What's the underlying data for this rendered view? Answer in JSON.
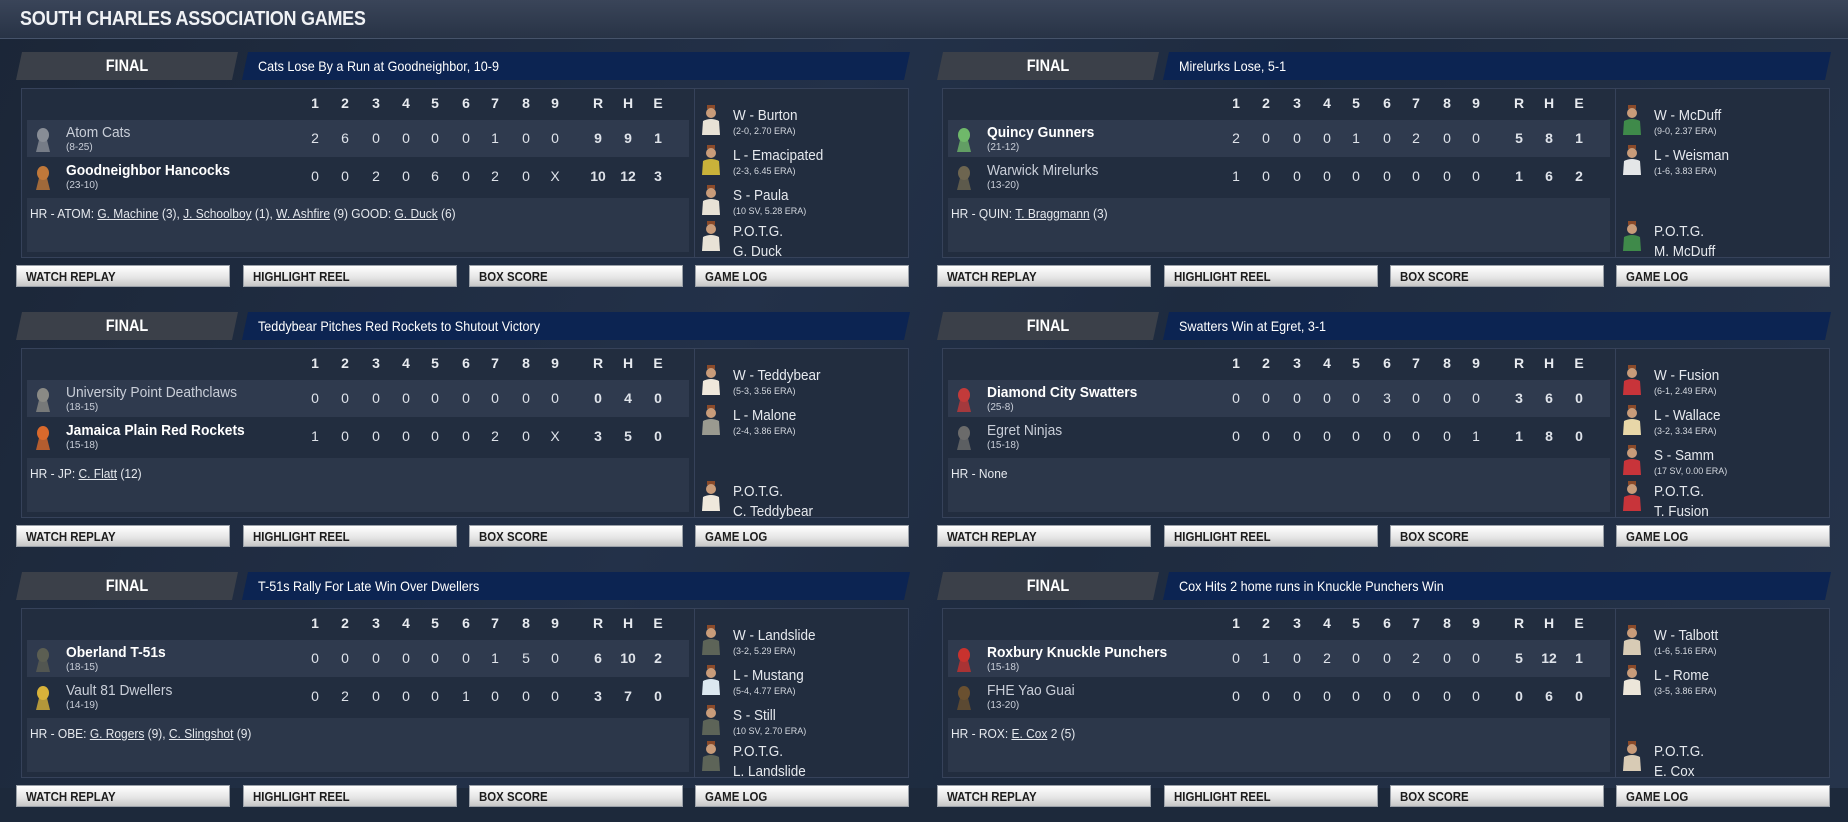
{
  "page_title": "SOUTH CHARLES ASSOCIATION GAMES",
  "innings": [
    "1",
    "2",
    "3",
    "4",
    "5",
    "6",
    "7",
    "8",
    "9"
  ],
  "totals_headers": [
    "R",
    "H",
    "E"
  ],
  "buttons": [
    "WATCH REPLAY",
    "HIGHLIGHT REEL",
    "BOX SCORE",
    "GAME LOG"
  ],
  "colors": {
    "headline_band": "#0c2452",
    "final_band": "#3b4049",
    "background": "#1d293b"
  },
  "games": [
    {
      "status": "FINAL",
      "headline": "Cats Lose By a Run at Goodneighbor, 10-9",
      "teams": [
        {
          "name": "Atom Cats",
          "record": "(8-25)",
          "winner": false,
          "logo": "cat-logo",
          "logo_color": "#888d96",
          "innings": [
            "2",
            "6",
            "0",
            "0",
            "0",
            "0",
            "1",
            "0",
            "0"
          ],
          "totals": [
            "9",
            "9",
            "1"
          ]
        },
        {
          "name": "Goodneighbor Hancocks",
          "record": "(23-10)",
          "winner": true,
          "logo": "hancock-logo",
          "logo_color": "#c0783a",
          "innings": [
            "0",
            "0",
            "2",
            "0",
            "6",
            "0",
            "2",
            "0",
            "X"
          ],
          "totals": [
            "10",
            "12",
            "3"
          ]
        }
      ],
      "hr": [
        {
          "t": "HR - ATOM: "
        },
        {
          "l": "G. Machine"
        },
        {
          "t": " (3), "
        },
        {
          "l": "J. Schoolboy"
        },
        {
          "t": " (1), "
        },
        {
          "l": "W. Ashfire"
        },
        {
          "t": " (9)  GOOD: "
        },
        {
          "l": "G. Duck"
        },
        {
          "t": " (6)"
        }
      ],
      "pitchers": [
        {
          "label": "W - Burton",
          "line": "(2-0, 2.70 ERA)",
          "jersey": "#e8e2d6"
        },
        {
          "label": "L - Emacipated",
          "line": "(2-3, 6.45 ERA)",
          "jersey": "#c9b23a"
        },
        {
          "label": "S - Paula",
          "line": "(10 SV, 5.28 ERA)",
          "jersey": "#e8e2d6"
        },
        {
          "label": "P.O.T.G.",
          "name": "G. Duck",
          "jersey": "#e8e2d6"
        }
      ]
    },
    {
      "status": "FINAL",
      "headline": "Mirelurks Lose, 5-1",
      "teams": [
        {
          "name": "Quincy Gunners",
          "record": "(21-12)",
          "winner": true,
          "logo": "skull-logo",
          "logo_color": "#6fb86a",
          "innings": [
            "2",
            "0",
            "0",
            "0",
            "1",
            "0",
            "2",
            "0",
            "0"
          ],
          "totals": [
            "5",
            "8",
            "1"
          ]
        },
        {
          "name": "Warwick Mirelurks",
          "record": "(13-20)",
          "winner": false,
          "logo": "mirelurk-logo",
          "logo_color": "#6d6550",
          "innings": [
            "1",
            "0",
            "0",
            "0",
            "0",
            "0",
            "0",
            "0",
            "0"
          ],
          "totals": [
            "1",
            "6",
            "2"
          ]
        }
      ],
      "hr": [
        {
          "t": "HR - QUIN: "
        },
        {
          "l": "T. Braggmann"
        },
        {
          "t": " (3)"
        }
      ],
      "pitchers": [
        {
          "label": "W - McDuff",
          "line": "(9-0, 2.37 ERA)",
          "jersey": "#3f8a4a"
        },
        {
          "label": "L - Weisman",
          "line": "(1-6, 3.83 ERA)",
          "jersey": "#e4e6e8"
        },
        null,
        {
          "label": "P.O.T.G.",
          "name": "M. McDuff",
          "jersey": "#3f8a4a"
        }
      ]
    },
    {
      "status": "FINAL",
      "headline": "Teddybear Pitches Red Rockets to Shutout Victory",
      "teams": [
        {
          "name": "University Point Deathclaws",
          "record": "(18-15)",
          "winner": false,
          "logo": "deathclaw-logo",
          "logo_color": "#8a8a85",
          "innings": [
            "0",
            "0",
            "0",
            "0",
            "0",
            "0",
            "0",
            "0",
            "0"
          ],
          "totals": [
            "0",
            "4",
            "0"
          ]
        },
        {
          "name": "Jamaica Plain Red Rockets",
          "record": "(15-18)",
          "winner": true,
          "logo": "rocket-logo",
          "logo_color": "#d9692c",
          "innings": [
            "1",
            "0",
            "0",
            "0",
            "0",
            "0",
            "2",
            "0",
            "X"
          ],
          "totals": [
            "3",
            "5",
            "0"
          ]
        }
      ],
      "hr": [
        {
          "t": "HR - JP: "
        },
        {
          "l": "C. Flatt"
        },
        {
          "t": " (12)"
        }
      ],
      "pitchers": [
        {
          "label": "W - Teddybear",
          "line": "(5-3, 3.56 ERA)",
          "jersey": "#efe8dc"
        },
        {
          "label": "L - Malone",
          "line": "(2-4, 3.86 ERA)",
          "jersey": "#9a9a90"
        },
        null,
        {
          "label": "P.O.T.G.",
          "name": "C. Teddybear",
          "jersey": "#efe8dc"
        }
      ]
    },
    {
      "status": "FINAL",
      "headline": "Swatters Win at Egret, 3-1",
      "teams": [
        {
          "name": "Diamond City Swatters",
          "record": "(25-8)",
          "winner": true,
          "logo": "swatter-logo",
          "logo_color": "#c23a3a",
          "innings": [
            "0",
            "0",
            "0",
            "0",
            "0",
            "3",
            "0",
            "0",
            "0"
          ],
          "totals": [
            "3",
            "6",
            "0"
          ]
        },
        {
          "name": "Egret Ninjas",
          "record": "(15-18)",
          "winner": false,
          "logo": "ninja-logo",
          "logo_color": "#6b6b6b",
          "innings": [
            "0",
            "0",
            "0",
            "0",
            "0",
            "0",
            "0",
            "0",
            "1"
          ],
          "totals": [
            "1",
            "8",
            "0"
          ]
        }
      ],
      "hr": [
        {
          "t": "HR - None"
        }
      ],
      "pitchers": [
        {
          "label": "W - Fusion",
          "line": "(6-1, 2.49 ERA)",
          "jersey": "#c8343a"
        },
        {
          "label": "L - Wallace",
          "line": "(3-2, 3.34 ERA)",
          "jersey": "#e8d7a8"
        },
        {
          "label": "S - Samm",
          "line": "(17 SV, 0.00 ERA)",
          "jersey": "#c8343a"
        },
        {
          "label": "P.O.T.G.",
          "name": "T. Fusion",
          "jersey": "#c8343a"
        }
      ]
    },
    {
      "status": "FINAL",
      "headline": "T-51s Rally For Late Win Over Dwellers",
      "teams": [
        {
          "name": "Oberland T-51s",
          "record": "(18-15)",
          "winner": true,
          "logo": "power-armor-logo",
          "logo_color": "#5b5e52",
          "innings": [
            "0",
            "0",
            "0",
            "0",
            "0",
            "0",
            "1",
            "5",
            "0"
          ],
          "totals": [
            "6",
            "10",
            "2"
          ]
        },
        {
          "name": "Vault 81 Dwellers",
          "record": "(14-19)",
          "winner": false,
          "logo": "vault-boy-logo",
          "logo_color": "#d8b23a",
          "innings": [
            "0",
            "2",
            "0",
            "0",
            "0",
            "1",
            "0",
            "0",
            "0"
          ],
          "totals": [
            "3",
            "7",
            "0"
          ]
        }
      ],
      "hr": [
        {
          "t": "HR - OBE: "
        },
        {
          "l": "G. Rogers"
        },
        {
          "t": " (9), "
        },
        {
          "l": "C. Slingshot"
        },
        {
          "t": " (9)"
        }
      ],
      "pitchers": [
        {
          "label": "W - Landslide",
          "line": "(3-2, 5.29 ERA)",
          "jersey": "#5d6458"
        },
        {
          "label": "L - Mustang",
          "line": "(5-4, 4.77 ERA)",
          "jersey": "#dce8f0"
        },
        {
          "label": "S - Still",
          "line": "(10 SV, 2.70 ERA)",
          "jersey": "#5d6458"
        },
        {
          "label": "P.O.T.G.",
          "name": "L. Landslide",
          "jersey": "#5d6458"
        }
      ]
    },
    {
      "status": "FINAL",
      "headline": "Cox Hits 2 home runs in Knuckle Punchers Win",
      "teams": [
        {
          "name": "Roxbury Knuckle Punchers",
          "record": "(15-18)",
          "winner": true,
          "logo": "r-logo",
          "logo_color": "#c8322e",
          "innings": [
            "0",
            "1",
            "0",
            "2",
            "0",
            "0",
            "2",
            "0",
            "0"
          ],
          "totals": [
            "5",
            "12",
            "1"
          ]
        },
        {
          "name": "FHE Yao Guai",
          "record": "(13-20)",
          "winner": false,
          "logo": "yao-guai-logo",
          "logo_color": "#6a5030",
          "innings": [
            "0",
            "0",
            "0",
            "0",
            "0",
            "0",
            "0",
            "0",
            "0"
          ],
          "totals": [
            "0",
            "6",
            "0"
          ]
        }
      ],
      "hr": [
        {
          "t": "HR - ROX: "
        },
        {
          "l": "E. Cox"
        },
        {
          "t": " 2 (5)"
        }
      ],
      "pitchers": [
        {
          "label": "W - Talbott",
          "line": "(1-6, 5.16 ERA)",
          "jersey": "#d8cbb5"
        },
        {
          "label": "L - Rome",
          "line": "(3-5, 3.86 ERA)",
          "jersey": "#ece6da"
        },
        null,
        {
          "label": "P.O.T.G.",
          "name": "E. Cox",
          "jersey": "#d8cbb5"
        }
      ]
    }
  ]
}
